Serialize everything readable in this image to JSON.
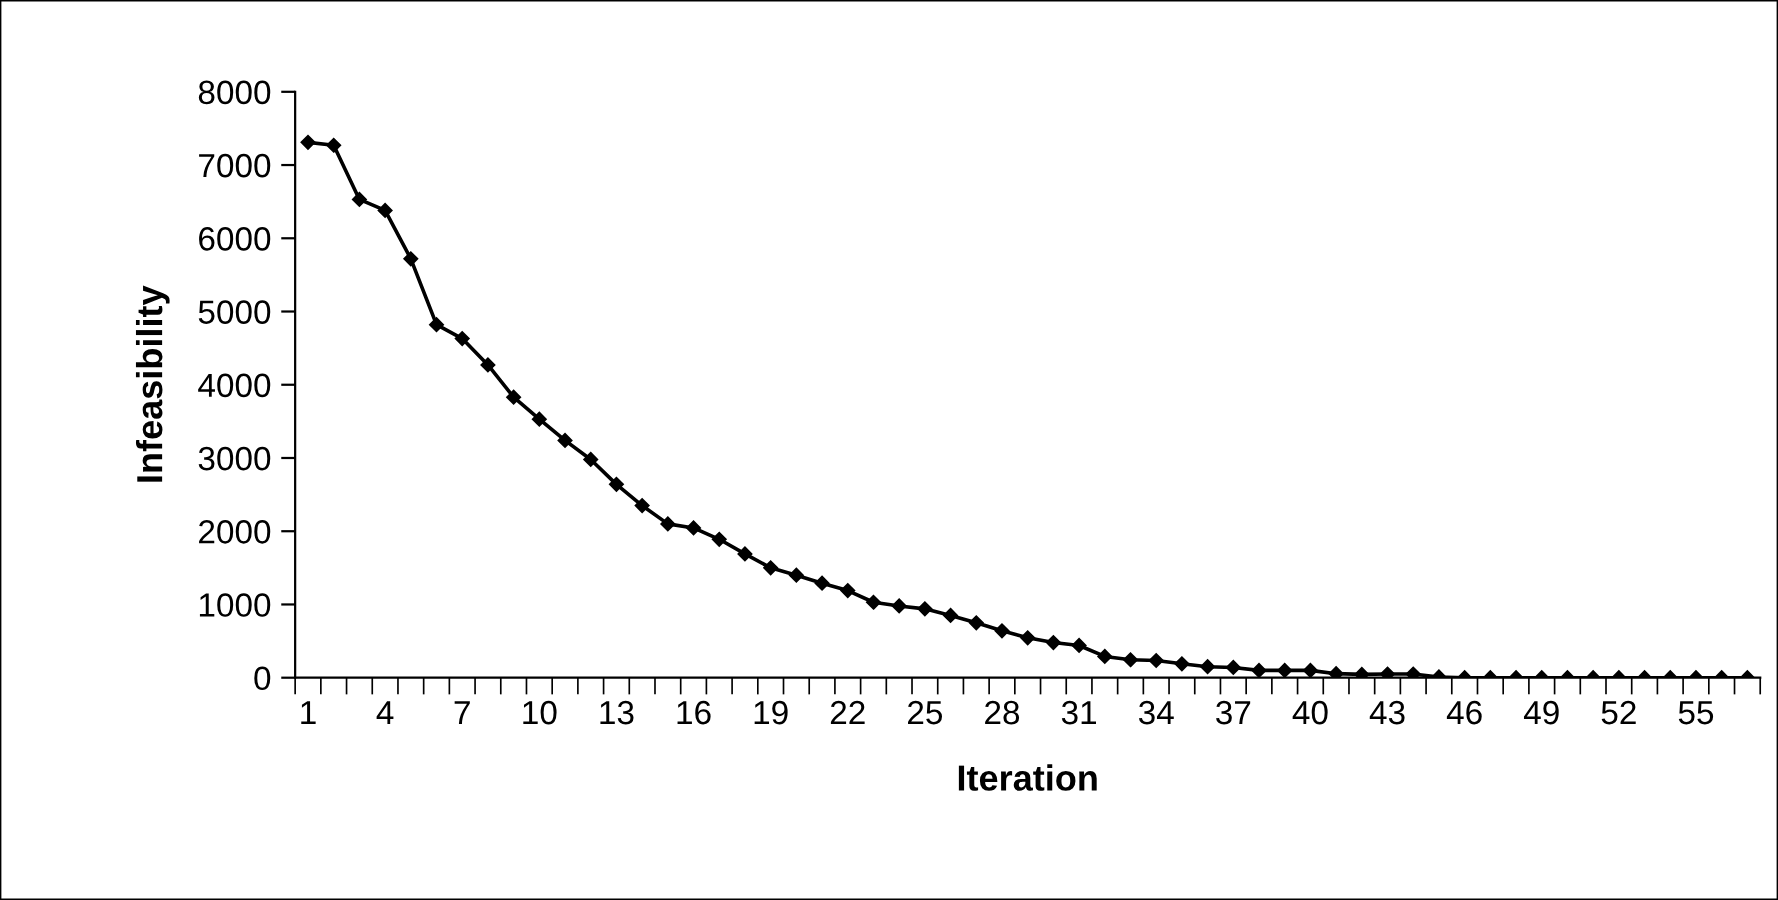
{
  "chart_data": {
    "type": "line",
    "xlabel": "Iteration",
    "ylabel": "Infeasibility",
    "categories": [
      "1",
      null,
      null,
      "4",
      null,
      null,
      "7",
      null,
      null,
      "10",
      null,
      null,
      "13",
      null,
      null,
      "16",
      null,
      null,
      "19",
      null,
      null,
      "22",
      null,
      null,
      "25",
      null,
      null,
      "28",
      null,
      null,
      "31",
      null,
      null,
      "34",
      null,
      null,
      "37",
      null,
      null,
      "40",
      null,
      null,
      "43",
      null,
      null,
      "46",
      null,
      null,
      "49",
      null,
      null,
      "52",
      null,
      null,
      "55",
      null,
      null
    ],
    "series": [
      {
        "color": "#000000",
        "values": [
          7310,
          7270,
          6530,
          6380,
          5720,
          4820,
          4630,
          4270,
          3830,
          3530,
          3240,
          2980,
          2640,
          2350,
          2100,
          2045,
          1890,
          1690,
          1500,
          1400,
          1290,
          1190,
          1030,
          980,
          940,
          850,
          750,
          640,
          545,
          480,
          440,
          290,
          245,
          235,
          190,
          150,
          140,
          100,
          100,
          100,
          55,
          45,
          50,
          50,
          10,
          0,
          0,
          0,
          0,
          0,
          0,
          0,
          0,
          0,
          0,
          0,
          0
        ]
      }
    ],
    "ylim": [
      0,
      8000
    ],
    "yticks": [
      0,
      1000,
      2000,
      3000,
      4000,
      5000,
      6000,
      7000,
      8000
    ],
    "grid": false,
    "legend": false,
    "marker": "diamond",
    "line_style": "solid"
  }
}
